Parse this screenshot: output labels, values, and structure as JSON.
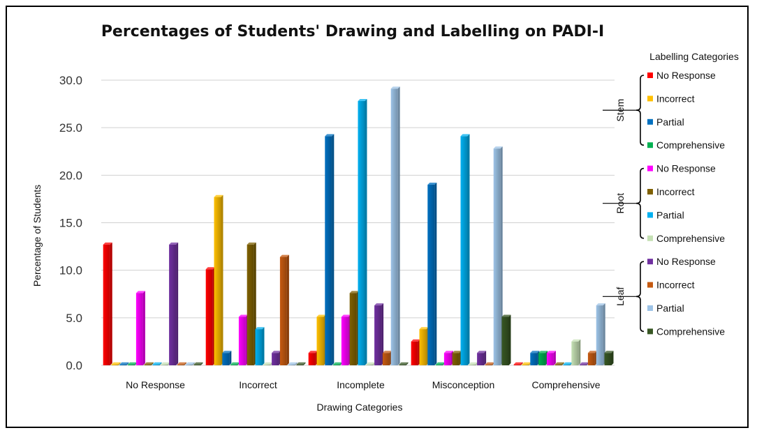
{
  "chart_data": {
    "type": "bar",
    "title": "Percentages of Students' Drawing and Labelling on PADI-I",
    "xlabel": "Drawing Categories",
    "ylabel": "Percentage of Students",
    "ylim": [
      0,
      30
    ],
    "yticks": [
      "0.0",
      "5.0",
      "10.0",
      "15.0",
      "20.0",
      "25.0",
      "30.0"
    ],
    "grid": true,
    "legend_position": "right",
    "legend_title": "Labelling Categories",
    "categories": [
      "No Response",
      "Incorrect",
      "Incomplete",
      "Misconception",
      "Comprehensive"
    ],
    "groups": [
      {
        "name": "Stem",
        "series": [
          0,
          1,
          2,
          3
        ]
      },
      {
        "name": "Root",
        "series": [
          4,
          5,
          6,
          7
        ]
      },
      {
        "name": "Leaf",
        "series": [
          8,
          9,
          10,
          11
        ]
      }
    ],
    "series": [
      {
        "name": "No Response",
        "group": "Stem",
        "color": "#ff0000",
        "values": [
          12.7,
          10.1,
          1.3,
          2.5,
          0
        ]
      },
      {
        "name": "Incorrect",
        "group": "Stem",
        "color": "#ffc000",
        "values": [
          0,
          17.7,
          5.1,
          3.8,
          0
        ]
      },
      {
        "name": "Partial",
        "group": "Stem",
        "color": "#0070c0",
        "values": [
          0,
          1.3,
          24.1,
          19.0,
          1.3
        ]
      },
      {
        "name": "Comprehensive",
        "group": "Stem",
        "color": "#00b050",
        "values": [
          0,
          0,
          0,
          0,
          1.3
        ]
      },
      {
        "name": "No Response",
        "group": "Root",
        "color": "#ff00ff",
        "values": [
          7.6,
          5.1,
          5.1,
          1.3,
          1.3
        ]
      },
      {
        "name": "Incorrect",
        "group": "Root",
        "color": "#7f6000",
        "values": [
          0,
          12.7,
          7.6,
          1.3,
          0
        ]
      },
      {
        "name": "Partial",
        "group": "Root",
        "color": "#00b0f0",
        "values": [
          0,
          3.8,
          27.8,
          24.1,
          0
        ]
      },
      {
        "name": "Comprehensive",
        "group": "Root",
        "color": "#c5e0b4",
        "values": [
          0,
          0,
          0,
          0,
          2.5
        ]
      },
      {
        "name": "No Response",
        "group": "Leaf",
        "color": "#7030a0",
        "values": [
          12.7,
          1.3,
          6.3,
          1.3,
          0
        ]
      },
      {
        "name": "Incorrect",
        "group": "Leaf",
        "color": "#c55a11",
        "values": [
          0,
          11.4,
          1.3,
          0,
          1.3
        ]
      },
      {
        "name": "Partial",
        "group": "Leaf",
        "color": "#9dc3e6",
        "values": [
          0,
          0,
          29.1,
          22.8,
          6.3
        ]
      },
      {
        "name": "Comprehensive",
        "group": "Leaf",
        "color": "#375623",
        "values": [
          0,
          0,
          0,
          5.1,
          1.3
        ]
      }
    ]
  }
}
